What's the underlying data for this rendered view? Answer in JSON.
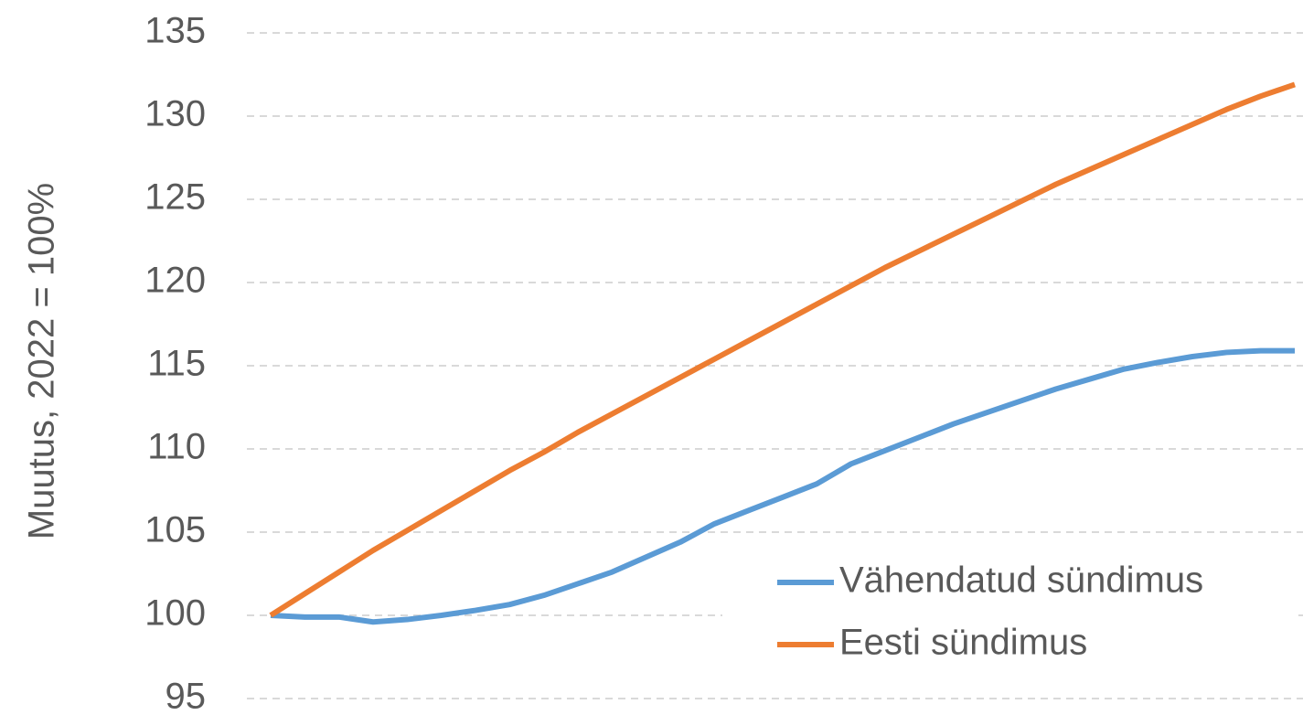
{
  "chart_data": {
    "type": "line",
    "ylabel": "Muutus, 2022 = 100%",
    "categories": [
      null,
      null,
      null,
      null,
      null,
      null,
      null,
      null,
      null,
      null,
      null,
      null,
      null,
      null,
      null,
      null,
      null,
      null,
      null,
      null,
      null,
      null,
      null,
      null,
      null,
      null,
      null,
      null,
      null,
      null,
      null
    ],
    "series": [
      {
        "name": "Vähendatud sündimus",
        "color": "#5b9bd5",
        "values": [
          100,
          99.9,
          99.9,
          99.6,
          99.75,
          100,
          100.3,
          100.65,
          101.2,
          101.9,
          102.6,
          103.5,
          104.4,
          105.5,
          106.3,
          107.1,
          107.9,
          109.1,
          109.9,
          110.7,
          111.5,
          112.2,
          112.9,
          113.6,
          114.2,
          114.8,
          115.2,
          115.55,
          115.8,
          115.9,
          115.9
        ]
      },
      {
        "name": "Eesti sündimus",
        "color": "#ed7d31",
        "values": [
          100,
          101.3,
          102.6,
          103.9,
          105.1,
          106.3,
          107.5,
          108.7,
          109.8,
          111.0,
          112.1,
          113.2,
          114.3,
          115.4,
          116.5,
          117.6,
          118.7,
          119.8,
          120.9,
          121.9,
          122.9,
          123.9,
          124.9,
          125.9,
          126.8,
          127.7,
          128.6,
          129.5,
          130.4,
          131.2,
          131.9
        ]
      }
    ],
    "ylim": [
      95,
      135
    ],
    "yticks": [
      95,
      100,
      105,
      110,
      115,
      120,
      125,
      130,
      135
    ],
    "grid": true,
    "legend": "lower-right"
  }
}
